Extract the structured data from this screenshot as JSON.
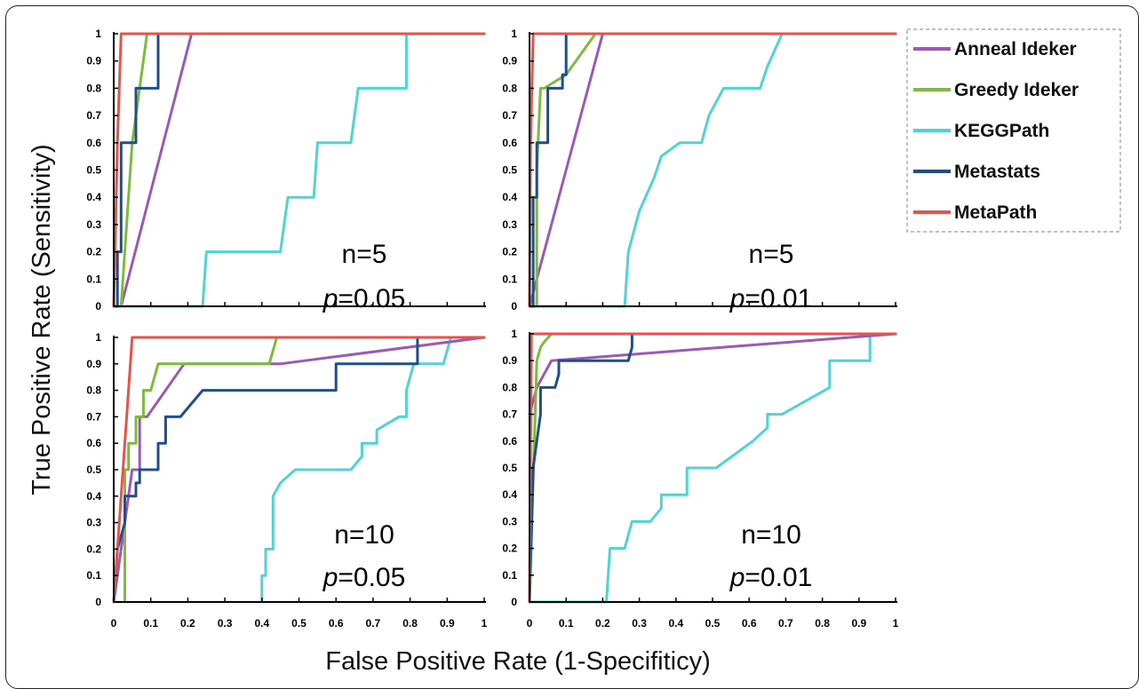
{
  "chart_data": {
    "type": "line",
    "xlabel": "False Positive Rate (1-Specifiticy)",
    "ylabel": "True Positive Rate (Sensitivity)",
    "xlim": [
      0,
      1
    ],
    "ylim": [
      0,
      1
    ],
    "tick_labels": [
      "0",
      "0.1",
      "0.2",
      "0.3",
      "0.4",
      "0.5",
      "0.6",
      "0.7",
      "0.8",
      "0.9",
      "1"
    ],
    "grid": false,
    "legend": {
      "placement": "top-right",
      "entries": [
        {
          "name": "Anneal Ideker",
          "color": "#9b59b6"
        },
        {
          "name": "Greedy Ideker",
          "color": "#7dbb3c"
        },
        {
          "name": "KEGGPath",
          "color": "#4fd3d3"
        },
        {
          "name": "Metastats",
          "color": "#1f4e8c"
        },
        {
          "name": "MetaPath",
          "color": "#e8524a"
        }
      ]
    },
    "panels": [
      {
        "id": "top-left",
        "annotation_n": "n=5",
        "annotation_p": "0.05",
        "series": [
          {
            "name": "Anneal Ideker",
            "x": [
              0.02,
              0.21,
              1.0
            ],
            "y": [
              0,
              1,
              1
            ]
          },
          {
            "name": "Greedy Ideker",
            "x": [
              0.0,
              0.02,
              0.05,
              0.09,
              1.0
            ],
            "y": [
              0,
              0,
              0.6,
              1,
              1
            ]
          },
          {
            "name": "KEGGPath",
            "x": [
              0,
              0.24,
              0.25,
              0.39,
              0.39,
              0.45,
              0.47,
              0.47,
              0.54,
              0.55,
              0.55,
              0.62,
              0.64,
              0.66,
              0.66,
              0.77,
              0.79,
              0.79,
              0.8,
              1.0
            ],
            "y": [
              0,
              0,
              0.2,
              0.2,
              0.2,
              0.2,
              0.4,
              0.4,
              0.4,
              0.6,
              0.6,
              0.6,
              0.6,
              0.8,
              0.8,
              0.8,
              0.8,
              1,
              1,
              1
            ]
          },
          {
            "name": "Metastats",
            "x": [
              0,
              0.01,
              0.01,
              0.02,
              0.02,
              0.06,
              0.06,
              0.1,
              0.1,
              0.12,
              0.12,
              1.0
            ],
            "y": [
              0,
              0,
              0.2,
              0.2,
              0.6,
              0.6,
              0.8,
              0.8,
              0.8,
              0.8,
              1,
              1
            ]
          },
          {
            "name": "MetaPath",
            "x": [
              0,
              0.01,
              0.02,
              1.0
            ],
            "y": [
              0,
              0.6,
              1,
              1
            ]
          }
        ]
      },
      {
        "id": "top-right",
        "annotation_n": "n=5",
        "annotation_p": "0.01",
        "series": [
          {
            "name": "Anneal Ideker",
            "x": [
              0.0,
              0.02,
              0.2,
              1.0
            ],
            "y": [
              0,
              0.1,
              1,
              1
            ]
          },
          {
            "name": "Greedy Ideker",
            "x": [
              0.0,
              0.02,
              0.02,
              0.03,
              0.03,
              0.04,
              0.1,
              0.18,
              1.0
            ],
            "y": [
              0,
              0,
              0.5,
              0.8,
              0.8,
              0.8,
              0.85,
              1,
              1
            ]
          },
          {
            "name": "KEGGPath",
            "x": [
              0,
              0.26,
              0.27,
              0.3,
              0.34,
              0.36,
              0.41,
              0.43,
              0.47,
              0.49,
              0.53,
              0.59,
              0.6,
              0.6,
              0.63,
              0.65,
              0.69,
              1.0
            ],
            "y": [
              0,
              0,
              0.2,
              0.35,
              0.47,
              0.55,
              0.6,
              0.6,
              0.6,
              0.7,
              0.8,
              0.8,
              0.8,
              0.8,
              0.8,
              0.88,
              1,
              1
            ]
          },
          {
            "name": "Metastats",
            "x": [
              0,
              0.01,
              0.01,
              0.02,
              0.02,
              0.05,
              0.05,
              0.09,
              0.09,
              0.1,
              0.1,
              1.0
            ],
            "y": [
              0,
              0,
              0.4,
              0.4,
              0.6,
              0.6,
              0.8,
              0.8,
              0.85,
              0.85,
              1,
              1
            ]
          },
          {
            "name": "MetaPath",
            "x": [
              0,
              0.003,
              0.01,
              1.0
            ],
            "y": [
              0,
              0.6,
              1,
              1
            ]
          }
        ]
      },
      {
        "id": "bottom-left",
        "annotation_n": "n=10",
        "annotation_p": "0.05",
        "series": [
          {
            "name": "Anneal Ideker",
            "x": [
              0.0,
              0.05,
              0.07,
              0.07,
              0.09,
              0.19,
              0.45,
              1.0
            ],
            "y": [
              0,
              0.5,
              0.5,
              0.7,
              0.7,
              0.9,
              0.9,
              1
            ]
          },
          {
            "name": "Greedy Ideker",
            "x": [
              0.03,
              0.03,
              0.04,
              0.04,
              0.06,
              0.06,
              0.08,
              0.08,
              0.1,
              0.12,
              0.13,
              0.42,
              0.44,
              1.0
            ],
            "y": [
              0,
              0.5,
              0.5,
              0.6,
              0.6,
              0.7,
              0.7,
              0.8,
              0.8,
              0.9,
              0.9,
              0.9,
              1,
              1
            ]
          },
          {
            "name": "KEGGPath",
            "x": [
              0.4,
              0.4,
              0.41,
              0.41,
              0.43,
              0.43,
              0.45,
              0.49,
              0.64,
              0.67,
              0.67,
              0.71,
              0.71,
              0.77,
              0.79,
              0.79,
              0.8,
              0.81,
              0.89,
              0.9,
              0.91,
              1.0
            ],
            "y": [
              0,
              0.1,
              0.1,
              0.2,
              0.2,
              0.4,
              0.45,
              0.5,
              0.5,
              0.55,
              0.6,
              0.6,
              0.65,
              0.7,
              0.7,
              0.8,
              0.85,
              0.9,
              0.9,
              0.95,
              1,
              1
            ]
          },
          {
            "name": "Metastats",
            "x": [
              0.0,
              0.01,
              0.01,
              0.03,
              0.03,
              0.06,
              0.06,
              0.07,
              0.07,
              0.12,
              0.12,
              0.14,
              0.14,
              0.18,
              0.18,
              0.24,
              0.24,
              0.6,
              0.6,
              0.82,
              0.82,
              1.0
            ],
            "y": [
              0,
              0.2,
              0.2,
              0.3,
              0.4,
              0.4,
              0.45,
              0.45,
              0.5,
              0.5,
              0.6,
              0.6,
              0.7,
              0.7,
              0.7,
              0.8,
              0.8,
              0.8,
              0.9,
              0.9,
              1,
              1
            ]
          },
          {
            "name": "MetaPath",
            "x": [
              0,
              0.05,
              1.0
            ],
            "y": [
              0,
              1,
              1
            ]
          }
        ]
      },
      {
        "id": "bottom-right",
        "annotation_n": "n=10",
        "annotation_p": "0.01",
        "series": [
          {
            "name": "Anneal Ideker",
            "x": [
              0.0,
              0.02,
              0.06,
              1.0
            ],
            "y": [
              0.7,
              0.8,
              0.9,
              1
            ]
          },
          {
            "name": "Greedy Ideker",
            "x": [
              0.0,
              0.02,
              0.03,
              0.04,
              0.06,
              1.0
            ],
            "y": [
              0,
              0.9,
              0.95,
              0.97,
              1,
              1
            ]
          },
          {
            "name": "KEGGPath",
            "x": [
              0,
              0.21,
              0.22,
              0.26,
              0.28,
              0.28,
              0.33,
              0.36,
              0.36,
              0.43,
              0.43,
              0.51,
              0.51,
              0.61,
              0.61,
              0.65,
              0.65,
              0.69,
              0.69,
              0.82,
              0.82,
              0.93,
              0.93,
              1.0
            ],
            "y": [
              0,
              0,
              0.2,
              0.2,
              0.3,
              0.3,
              0.3,
              0.35,
              0.4,
              0.4,
              0.5,
              0.5,
              0.5,
              0.6,
              0.6,
              0.65,
              0.7,
              0.7,
              0.7,
              0.8,
              0.9,
              0.9,
              1,
              1
            ]
          },
          {
            "name": "Metastats",
            "x": [
              0.0,
              0.01,
              0.02,
              0.03,
              0.03,
              0.05,
              0.05,
              0.07,
              0.08,
              0.08,
              0.27,
              0.28,
              0.28,
              1.0
            ],
            "y": [
              0,
              0.5,
              0.6,
              0.7,
              0.8,
              0.8,
              0.8,
              0.8,
              0.85,
              0.9,
              0.9,
              0.95,
              1,
              1
            ]
          },
          {
            "name": "MetaPath",
            "x": [
              0,
              0.005,
              1.0
            ],
            "y": [
              0,
              1,
              1
            ]
          }
        ]
      }
    ]
  }
}
